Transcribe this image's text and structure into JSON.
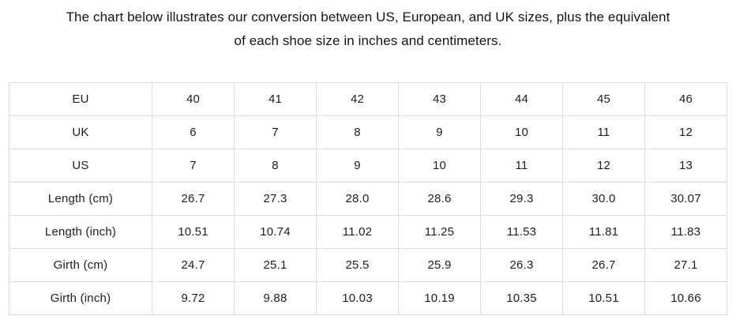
{
  "intro": {
    "line1": "The chart below illustrates our conversion between US, European, and UK sizes, plus the equivalent",
    "line2": "of each shoe size in inches and centimeters."
  },
  "table": {
    "rows": [
      {
        "label": "EU",
        "values": [
          "40",
          "41",
          "42",
          "43",
          "44",
          "45",
          "46"
        ]
      },
      {
        "label": "UK",
        "values": [
          "6",
          "7",
          "8",
          "9",
          "10",
          "11",
          "12"
        ]
      },
      {
        "label": "US",
        "values": [
          "7",
          "8",
          "9",
          "10",
          "11",
          "12",
          "13"
        ]
      },
      {
        "label": "Length (cm)",
        "values": [
          "26.7",
          "27.3",
          "28.0",
          "28.6",
          "29.3",
          "30.0",
          "30.07"
        ]
      },
      {
        "label": "Length (inch)",
        "values": [
          "10.51",
          "10.74",
          "11.02",
          "11.25",
          "11.53",
          "11.81",
          "11.83"
        ]
      },
      {
        "label": "Girth (cm)",
        "values": [
          "24.7",
          "25.1",
          "25.5",
          "25.9",
          "26.3",
          "26.7",
          "27.1"
        ]
      },
      {
        "label": "Girth (inch)",
        "values": [
          "9.72",
          "9.88",
          "10.03",
          "10.19",
          "10.35",
          "10.51",
          "10.66"
        ]
      }
    ]
  },
  "colors": {
    "border": "#dcdcdc",
    "text": "#1e1e1e",
    "background": "#ffffff"
  },
  "chart_data": {
    "type": "table",
    "caption": "The chart below illustrates our conversion between US, European, and UK sizes, plus the equivalent of each shoe size in inches and centimeters.",
    "rows": [
      {
        "label": "EU",
        "values": [
          40,
          41,
          42,
          43,
          44,
          45,
          46
        ]
      },
      {
        "label": "UK",
        "values": [
          6,
          7,
          8,
          9,
          10,
          11,
          12
        ]
      },
      {
        "label": "US",
        "values": [
          7,
          8,
          9,
          10,
          11,
          12,
          13
        ]
      },
      {
        "label": "Length (cm)",
        "values": [
          26.7,
          27.3,
          28.0,
          28.6,
          29.3,
          30.0,
          30.07
        ]
      },
      {
        "label": "Length (inch)",
        "values": [
          10.51,
          10.74,
          11.02,
          11.25,
          11.53,
          11.81,
          11.83
        ]
      },
      {
        "label": "Girth (cm)",
        "values": [
          24.7,
          25.1,
          25.5,
          25.9,
          26.3,
          26.7,
          27.1
        ]
      },
      {
        "label": "Girth (inch)",
        "values": [
          9.72,
          9.88,
          10.03,
          10.19,
          10.35,
          10.51,
          10.66
        ]
      }
    ]
  }
}
